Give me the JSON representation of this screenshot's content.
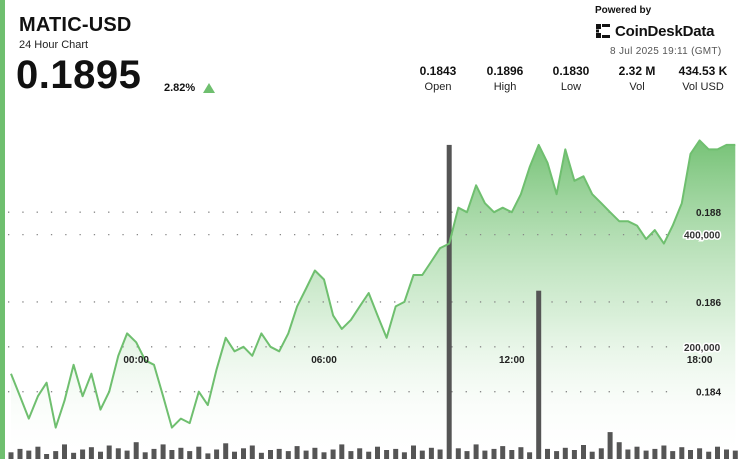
{
  "header": {
    "title": "MATIC-USD",
    "subtitle": "24 Hour Chart",
    "price": "0.1895",
    "change": "2.82%",
    "accent_color": "#6fbf6f"
  },
  "branding": {
    "powered_by": "Powered by",
    "name": "CoinDeskData",
    "logo_icon": "coindesk-logo-icon",
    "timestamp": "8 Jul 2025 19:11 (GMT)"
  },
  "stats": [
    {
      "value": "0.1843",
      "label": "Open"
    },
    {
      "value": "0.1896",
      "label": "High"
    },
    {
      "value": "0.1830",
      "label": "Low"
    },
    {
      "value": "2.32 M",
      "label": "Vol"
    },
    {
      "value": "434.53 K",
      "label": "Vol USD"
    }
  ],
  "chart_data": {
    "type": "area",
    "title": "",
    "xlabel": "",
    "ylabel": "",
    "x_ticks": [
      "00:00",
      "06:00",
      "12:00",
      "18:00"
    ],
    "y_ticks": [
      {
        "value": 0.184,
        "label": "0.184"
      },
      {
        "value": 0.186,
        "label": "0.186"
      },
      {
        "value": 0.188,
        "label": "0.188"
      }
    ],
    "volume_ticks": [
      {
        "value": 200000,
        "label": "200,000"
      },
      {
        "value": 400000,
        "label": "400,000"
      }
    ],
    "x_hours": [
      -4.0,
      -3.71,
      -3.43,
      -3.14,
      -2.86,
      -2.57,
      -2.29,
      -2.0,
      -1.71,
      -1.43,
      -1.14,
      -0.86,
      -0.57,
      -0.29,
      0.0,
      0.29,
      0.57,
      0.86,
      1.14,
      1.43,
      1.71,
      2.0,
      2.29,
      2.57,
      2.86,
      3.14,
      3.43,
      3.71,
      4.0,
      4.29,
      4.57,
      4.86,
      5.14,
      5.43,
      5.71,
      6.0,
      6.29,
      6.57,
      6.86,
      7.14,
      7.43,
      7.71,
      8.0,
      8.29,
      8.57,
      8.86,
      9.14,
      9.43,
      9.71,
      10.0,
      10.29,
      10.57,
      10.86,
      11.14,
      11.43,
      11.71,
      12.0,
      12.29,
      12.57,
      12.86,
      13.14,
      13.43,
      13.71,
      14.0,
      14.29,
      14.57,
      14.86,
      15.14,
      15.43,
      15.71,
      16.0,
      16.29,
      16.57,
      16.86,
      17.14,
      17.43,
      17.71,
      18.0,
      18.29,
      18.57,
      18.86,
      19.14
    ],
    "price": [
      0.1844,
      0.1839,
      0.1834,
      0.1839,
      0.1842,
      0.1832,
      0.1838,
      0.1846,
      0.1839,
      0.1844,
      0.1836,
      0.184,
      0.1848,
      0.1853,
      0.1851,
      0.1847,
      0.1846,
      0.1839,
      0.1832,
      0.1834,
      0.1833,
      0.184,
      0.1837,
      0.1845,
      0.1852,
      0.1849,
      0.185,
      0.1848,
      0.1853,
      0.185,
      0.1849,
      0.1853,
      0.1859,
      0.1863,
      0.1867,
      0.1865,
      0.1857,
      0.1854,
      0.1856,
      0.1859,
      0.1862,
      0.1857,
      0.1852,
      0.1859,
      0.186,
      0.1866,
      0.1866,
      0.1869,
      0.1872,
      0.1873,
      0.1881,
      0.188,
      0.1886,
      0.1882,
      0.188,
      0.1881,
      0.188,
      0.1884,
      0.189,
      0.1895,
      0.1891,
      0.1884,
      0.1894,
      0.1887,
      0.1888,
      0.1884,
      0.1882,
      0.188,
      0.1878,
      0.1878,
      0.1877,
      0.1874,
      0.1876,
      0.1873,
      0.1877,
      0.1882,
      0.1893,
      0.1896,
      0.1894,
      0.1894,
      0.1895,
      0.1895
    ],
    "volume": [
      12000,
      18000,
      15000,
      22000,
      9000,
      14000,
      26000,
      11000,
      17000,
      21000,
      13000,
      24000,
      19000,
      15000,
      30000,
      12000,
      18000,
      26000,
      16000,
      20000,
      14000,
      22000,
      10000,
      17000,
      28000,
      13000,
      19000,
      24000,
      11000,
      16000,
      18000,
      14000,
      23000,
      15000,
      20000,
      12000,
      17000,
      26000,
      14000,
      19000,
      13000,
      22000,
      16000,
      18000,
      12000,
      24000,
      15000,
      20000,
      17000,
      560000,
      19000,
      14000,
      26000,
      15000,
      18000,
      23000,
      16000,
      21000,
      12000,
      300000,
      18000,
      14000,
      20000,
      16000,
      25000,
      13000,
      19000,
      48000,
      30000,
      17000,
      22000,
      15000,
      18000,
      24000,
      14000,
      21000,
      16000,
      19000,
      13000,
      22000,
      17000,
      15000
    ],
    "ylim": [
      0.1825,
      0.1905
    ],
    "volume_ylim": [
      0,
      640000
    ],
    "xlim": [
      -4.35,
      19.45
    ],
    "grid": true,
    "colors": {
      "line": "#6fbf6f",
      "fill_top": "#6fbf6f",
      "volume": "#555555",
      "grid": "#888888"
    }
  }
}
